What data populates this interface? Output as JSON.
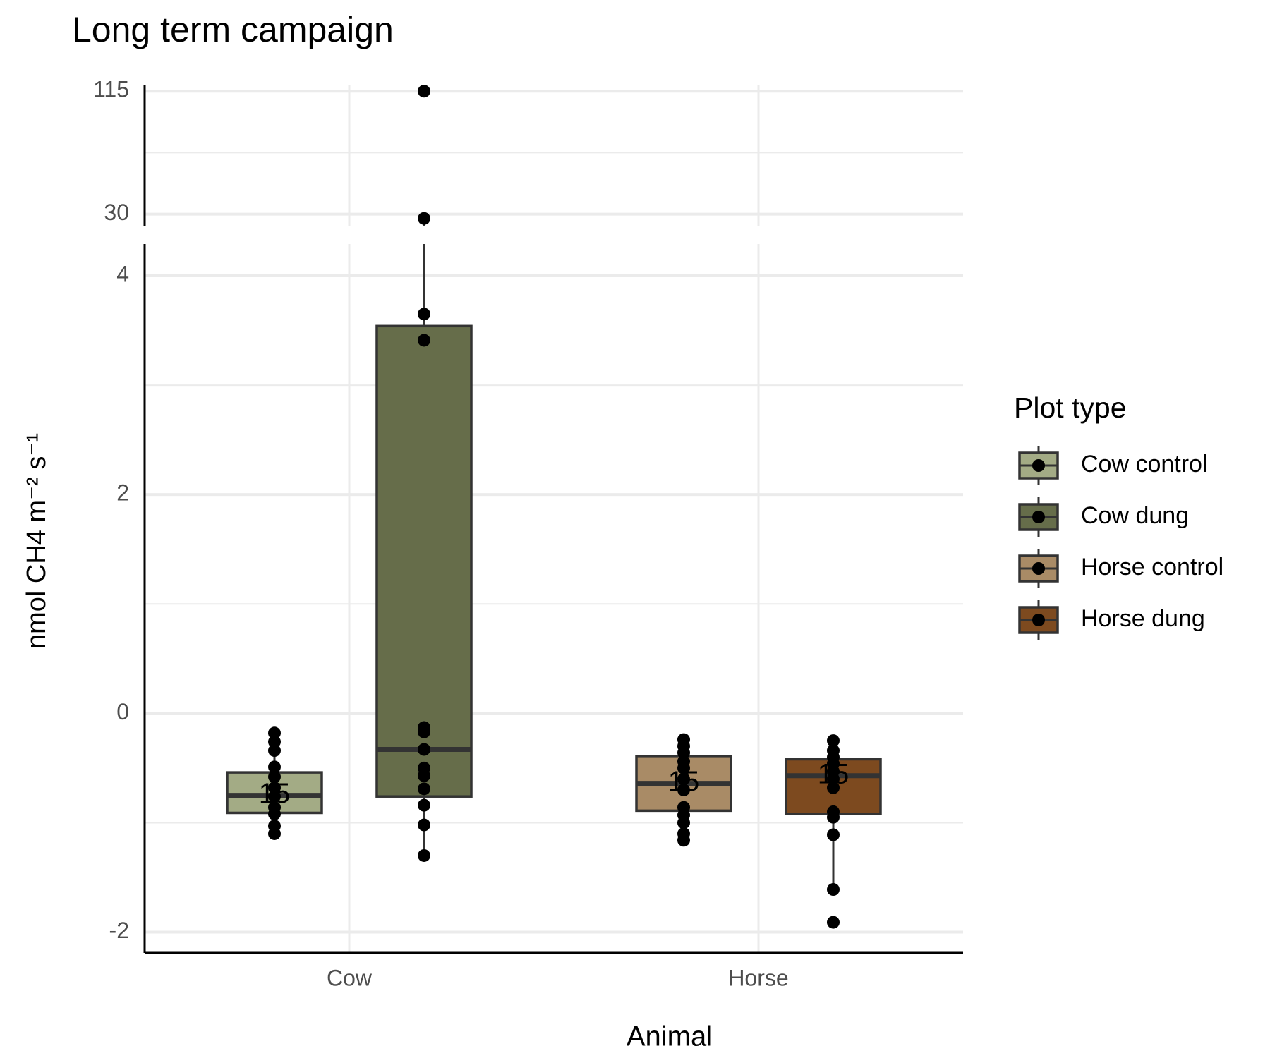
{
  "chart_data": {
    "type": "box",
    "title": "Long term campaign",
    "x_label": "Animal",
    "y_label": "nmol CH4 m⁻² s⁻¹",
    "categories": [
      "Cow",
      "Horse"
    ],
    "panels": [
      {
        "ylim": [
          21.5,
          119
        ],
        "yticks": [
          30,
          115
        ],
        "minor_grid": [
          72.5
        ]
      },
      {
        "ylim": [
          -2.19,
          4.29
        ],
        "yticks": [
          -2,
          0,
          2,
          4
        ],
        "minor_grid": [
          -1,
          1,
          3
        ]
      }
    ],
    "legend_title": "Plot type",
    "series": [
      {
        "name": "Cow control",
        "color": "#a3ab85",
        "box": {
          "whisker_low": -1.1,
          "q1": -0.91,
          "median": -0.75,
          "q3": -0.54,
          "whisker_high": -0.18
        },
        "points": [
          -0.18,
          -0.26,
          -0.34,
          -0.49,
          -0.58,
          -0.68,
          -0.76,
          -0.86,
          -0.92,
          -1.03,
          -1.1
        ],
        "n_label": "15"
      },
      {
        "name": "Cow dung",
        "color": "#666d4a",
        "box": {
          "whisker_low": -1.3,
          "q1": -0.76,
          "median": -0.33,
          "q3": 3.54,
          "whisker_high": 27
        },
        "points": [
          115,
          27,
          3.65,
          3.41,
          -0.13,
          -0.17,
          -0.33,
          -0.5,
          -0.57,
          -0.69,
          -0.84,
          -1.02,
          -1.3
        ]
      },
      {
        "name": "Horse control",
        "color": "#a98b66",
        "box": {
          "whisker_low": -1.16,
          "q1": -0.89,
          "median": -0.64,
          "q3": -0.39,
          "whisker_high": -0.24
        },
        "points": [
          -0.24,
          -0.3,
          -0.36,
          -0.44,
          -0.5,
          -0.6,
          -0.7,
          -0.86,
          -0.93,
          -1.0,
          -1.1,
          -1.16
        ],
        "n_label": "15"
      },
      {
        "name": "Horse dung",
        "color": "#7d4a1f",
        "box": {
          "whisker_low": -1.61,
          "q1": -0.92,
          "median": -0.57,
          "q3": -0.42,
          "whisker_high": -0.25
        },
        "points": [
          -0.25,
          -0.34,
          -0.4,
          -0.46,
          -0.53,
          -0.6,
          -0.68,
          -0.9,
          -0.95,
          -1.11,
          -1.61,
          -1.91
        ],
        "n_label": "15"
      }
    ]
  }
}
